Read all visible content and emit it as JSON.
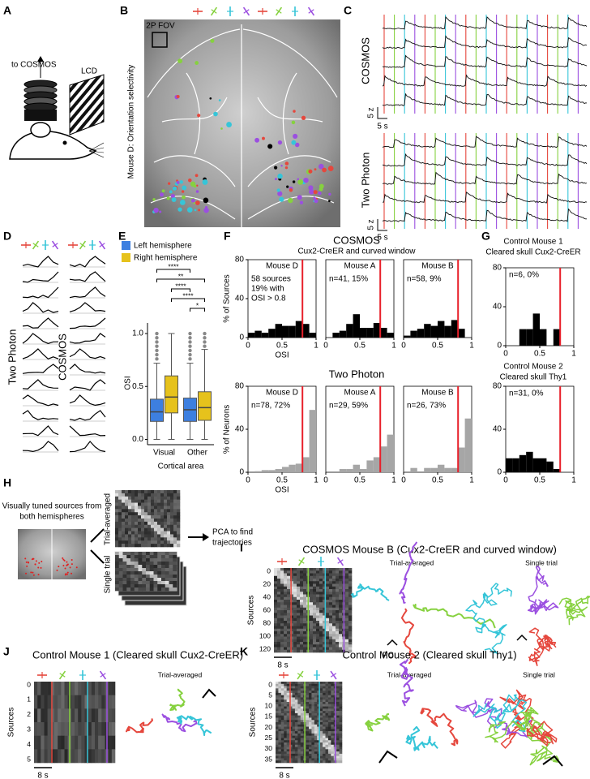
{
  "panels": {
    "A": {
      "label": "A",
      "camera_label": "to COSMOS",
      "screen_label": "LCD"
    },
    "B": {
      "label": "B",
      "fov_label": "2P FOV",
      "side_title": "Mouse D: Orientation selectivity"
    },
    "C": {
      "label": "C",
      "top_title": "COSMOS",
      "bottom_title": "Two Photon",
      "top_scale_y": "5 z",
      "top_scale_x": "5 s",
      "bottom_scale_y": "5 z",
      "bottom_scale_x": "5 s"
    },
    "D": {
      "label": "D",
      "left_title": "Two Photon",
      "right_title": "COSMOS"
    },
    "E": {
      "label": "E"
    },
    "F": {
      "label": "F",
      "top_title": "COSMOS",
      "top_subtitle": "Cux2-CreER and curved window",
      "bottom_title": "Two Photon"
    },
    "G": {
      "label": "G",
      "top_title": "Control Mouse 1",
      "top_subtitle": "Cleared skull Cux2-CreER",
      "bottom_title": "Control Mouse 2",
      "bottom_subtitle": "Cleared skull Thy1"
    },
    "H": {
      "label": "H",
      "source_text": [
        "Visually tuned sources from",
        "both hemispheres"
      ],
      "stack_top": "Trial-averaged",
      "stack_bottom": "Single trial",
      "result": [
        "PCA to find",
        "trajectories"
      ]
    },
    "I": {
      "label": "I",
      "title": "COSMOS Mouse B (Cux2-CreER and curved window)",
      "ylabel": "Sources",
      "yticks": [
        "0",
        "20",
        "40",
        "60",
        "80",
        "100",
        "120"
      ],
      "time_scale": "8 s",
      "left_title": "Trial-averaged",
      "right_title": "Single trial",
      "axis_label": "PC"
    },
    "J": {
      "label": "J",
      "title": "Control Mouse 1 (Cleared skull Cux2-CreER)",
      "ylabel": "Sources",
      "yticks": [
        "0",
        "1",
        "2",
        "3",
        "4",
        "5"
      ],
      "time_scale": "8 s",
      "left_title": "Trial-averaged"
    },
    "K": {
      "label": "K",
      "title": "Control Mouse 2 (Cleared skull Thy1)",
      "ylabel": "Sources",
      "yticks": [
        "0",
        "5",
        "10",
        "15",
        "20",
        "25",
        "30",
        "35"
      ],
      "time_scale": "8 s",
      "left_title": "Trial-averaged",
      "right_title": "Single trial"
    }
  },
  "chart_data": [
    {
      "type": "box",
      "ylabel": "OSI",
      "xlabel": "Cortical area",
      "categories": [
        "Visual",
        "Other"
      ],
      "series": [
        {
          "name": "Left hemisphere",
          "color": "#3d7fe0",
          "boxes": [
            {
              "whislo": 0.0,
              "q1": 0.17,
              "med": 0.26,
              "q3": 0.38,
              "whishi": 0.72,
              "fliers": [
                0.76,
                0.8,
                0.84,
                0.88,
                0.92,
                0.96,
                1.0
              ]
            },
            {
              "whislo": 0.0,
              "q1": 0.17,
              "med": 0.28,
              "q3": 0.39,
              "whishi": 0.72,
              "fliers": [
                0.76,
                0.8,
                0.84,
                0.88,
                0.92,
                0.96,
                1.0
              ]
            }
          ]
        },
        {
          "name": "Right hemisphere",
          "color": "#e6c21c",
          "boxes": [
            {
              "whislo": 0.0,
              "q1": 0.25,
              "med": 0.4,
              "q3": 0.6,
              "whishi": 1.0,
              "fliers": []
            },
            {
              "whislo": 0.0,
              "q1": 0.18,
              "med": 0.3,
              "q3": 0.45,
              "whishi": 0.85,
              "fliers": [
                0.88,
                0.92,
                0.96,
                1.0
              ]
            }
          ]
        }
      ],
      "ylim": [
        -0.05,
        1.1
      ],
      "yticks": [
        {
          "value": 0,
          "label": "0.0"
        },
        {
          "value": 0.5,
          "label": "0.5"
        },
        {
          "value": 1,
          "label": "1.0"
        }
      ],
      "significance": [
        "****",
        "**",
        "****",
        "****",
        "*"
      ]
    },
    {
      "type": "histogram",
      "title": "Mouse D",
      "annotations": [
        "58 sources",
        "19% with",
        "OSI > 0.8"
      ],
      "ylabel": "% of Sources",
      "xlabel": "OSI",
      "color": "#000000",
      "bins": [
        0,
        0.1,
        0.2,
        0.3,
        0.4,
        0.5,
        0.6,
        0.7,
        0.8,
        0.9,
        1
      ],
      "values": [
        5,
        7,
        5,
        9,
        14,
        12,
        12,
        17,
        14,
        5
      ],
      "xlim": [
        0,
        1
      ],
      "ylim": [
        0,
        80
      ],
      "xticks": [
        0,
        0.5,
        1
      ],
      "yticks": [
        0,
        40,
        80
      ],
      "threshold": 0.8,
      "threshold_color": "#e8202a"
    },
    {
      "type": "histogram",
      "title": "Mouse A",
      "annotations": [
        "n=41, 15%"
      ],
      "color": "#000000",
      "bins": [
        0,
        0.1,
        0.2,
        0.3,
        0.4,
        0.5,
        0.6,
        0.7,
        0.8,
        0.9,
        1
      ],
      "values": [
        0,
        5,
        7,
        14,
        24,
        10,
        10,
        15,
        10,
        5
      ],
      "xlim": [
        0,
        1
      ],
      "ylim": [
        0,
        80
      ],
      "xticks": [
        0,
        0.5,
        1
      ],
      "threshold": 0.8,
      "threshold_color": "#e8202a"
    },
    {
      "type": "histogram",
      "title": "Mouse B",
      "annotations": [
        "n=58, 9%"
      ],
      "color": "#000000",
      "bins": [
        0,
        0.1,
        0.2,
        0.3,
        0.4,
        0.5,
        0.6,
        0.7,
        0.8,
        0.9,
        1
      ],
      "values": [
        2,
        7,
        9,
        14,
        12,
        17,
        12,
        18,
        9,
        0
      ],
      "xlim": [
        0,
        1
      ],
      "ylim": [
        0,
        80
      ],
      "xticks": [
        0,
        0.5,
        1
      ],
      "threshold": 0.8,
      "threshold_color": "#e8202a"
    },
    {
      "type": "histogram",
      "annotations": [
        "n=6, 0%"
      ],
      "color": "#000000",
      "bins": [
        0,
        0.1,
        0.2,
        0.3,
        0.4,
        0.5,
        0.6,
        0.7,
        0.8,
        0.9,
        1
      ],
      "values": [
        0,
        0,
        17,
        17,
        33,
        17,
        0,
        17,
        0,
        0
      ],
      "xlim": [
        0,
        1
      ],
      "ylim": [
        0,
        80
      ],
      "xticks": [
        0,
        0.5,
        1
      ],
      "yticks": [
        0,
        40,
        80
      ],
      "threshold": 0.8,
      "threshold_color": "#e8202a"
    },
    {
      "type": "histogram",
      "title": "Mouse D",
      "annotations": [
        "n=78, 72%"
      ],
      "ylabel": "% of Neurons",
      "xlabel": "OSI",
      "color": "#a6a6a6",
      "bins": [
        0,
        0.1,
        0.2,
        0.3,
        0.4,
        0.5,
        0.6,
        0.7,
        0.8,
        0.9,
        1
      ],
      "values": [
        0,
        1,
        2,
        2,
        3,
        5,
        7,
        8,
        14,
        58
      ],
      "xlim": [
        0,
        1
      ],
      "ylim": [
        0,
        80
      ],
      "xticks": [
        0,
        0.5,
        1
      ],
      "yticks": [
        0,
        40,
        80
      ],
      "threshold": 0.8,
      "threshold_color": "#e8202a"
    },
    {
      "type": "histogram",
      "title": "Mouse A",
      "annotations": [
        "n=29, 59%"
      ],
      "color": "#a6a6a6",
      "bins": [
        0,
        0.1,
        0.2,
        0.3,
        0.4,
        0.5,
        0.6,
        0.7,
        0.8,
        0.9,
        1
      ],
      "values": [
        0,
        0,
        3,
        3,
        7,
        3,
        11,
        14,
        24,
        35
      ],
      "xlim": [
        0,
        1
      ],
      "ylim": [
        0,
        80
      ],
      "xticks": [
        0,
        0.5,
        1
      ],
      "threshold": 0.8,
      "threshold_color": "#e8202a"
    },
    {
      "type": "histogram",
      "title": "Mouse B",
      "annotations": [
        "n=26, 73%"
      ],
      "color": "#a6a6a6",
      "bins": [
        0,
        0.1,
        0.2,
        0.3,
        0.4,
        0.5,
        0.6,
        0.7,
        0.8,
        0.9,
        1
      ],
      "values": [
        0,
        4,
        0,
        4,
        4,
        7,
        4,
        4,
        23,
        50
      ],
      "xlim": [
        0,
        1
      ],
      "ylim": [
        0,
        80
      ],
      "xticks": [
        0,
        0.5,
        1
      ],
      "threshold": 0.8,
      "threshold_color": "#e8202a"
    },
    {
      "type": "histogram",
      "annotations": [
        "n=31, 0%"
      ],
      "color": "#000000",
      "bins": [
        0,
        0.1,
        0.2,
        0.3,
        0.4,
        0.5,
        0.6,
        0.7,
        0.8,
        0.9,
        1
      ],
      "values": [
        13,
        13,
        16,
        19,
        13,
        13,
        10,
        3,
        0,
        0
      ],
      "xlim": [
        0,
        1
      ],
      "ylim": [
        0,
        80
      ],
      "xticks": [
        0,
        0.5,
        1
      ],
      "yticks": [
        0,
        40,
        80
      ],
      "threshold": 0.8,
      "threshold_color": "#e8202a"
    }
  ]
}
